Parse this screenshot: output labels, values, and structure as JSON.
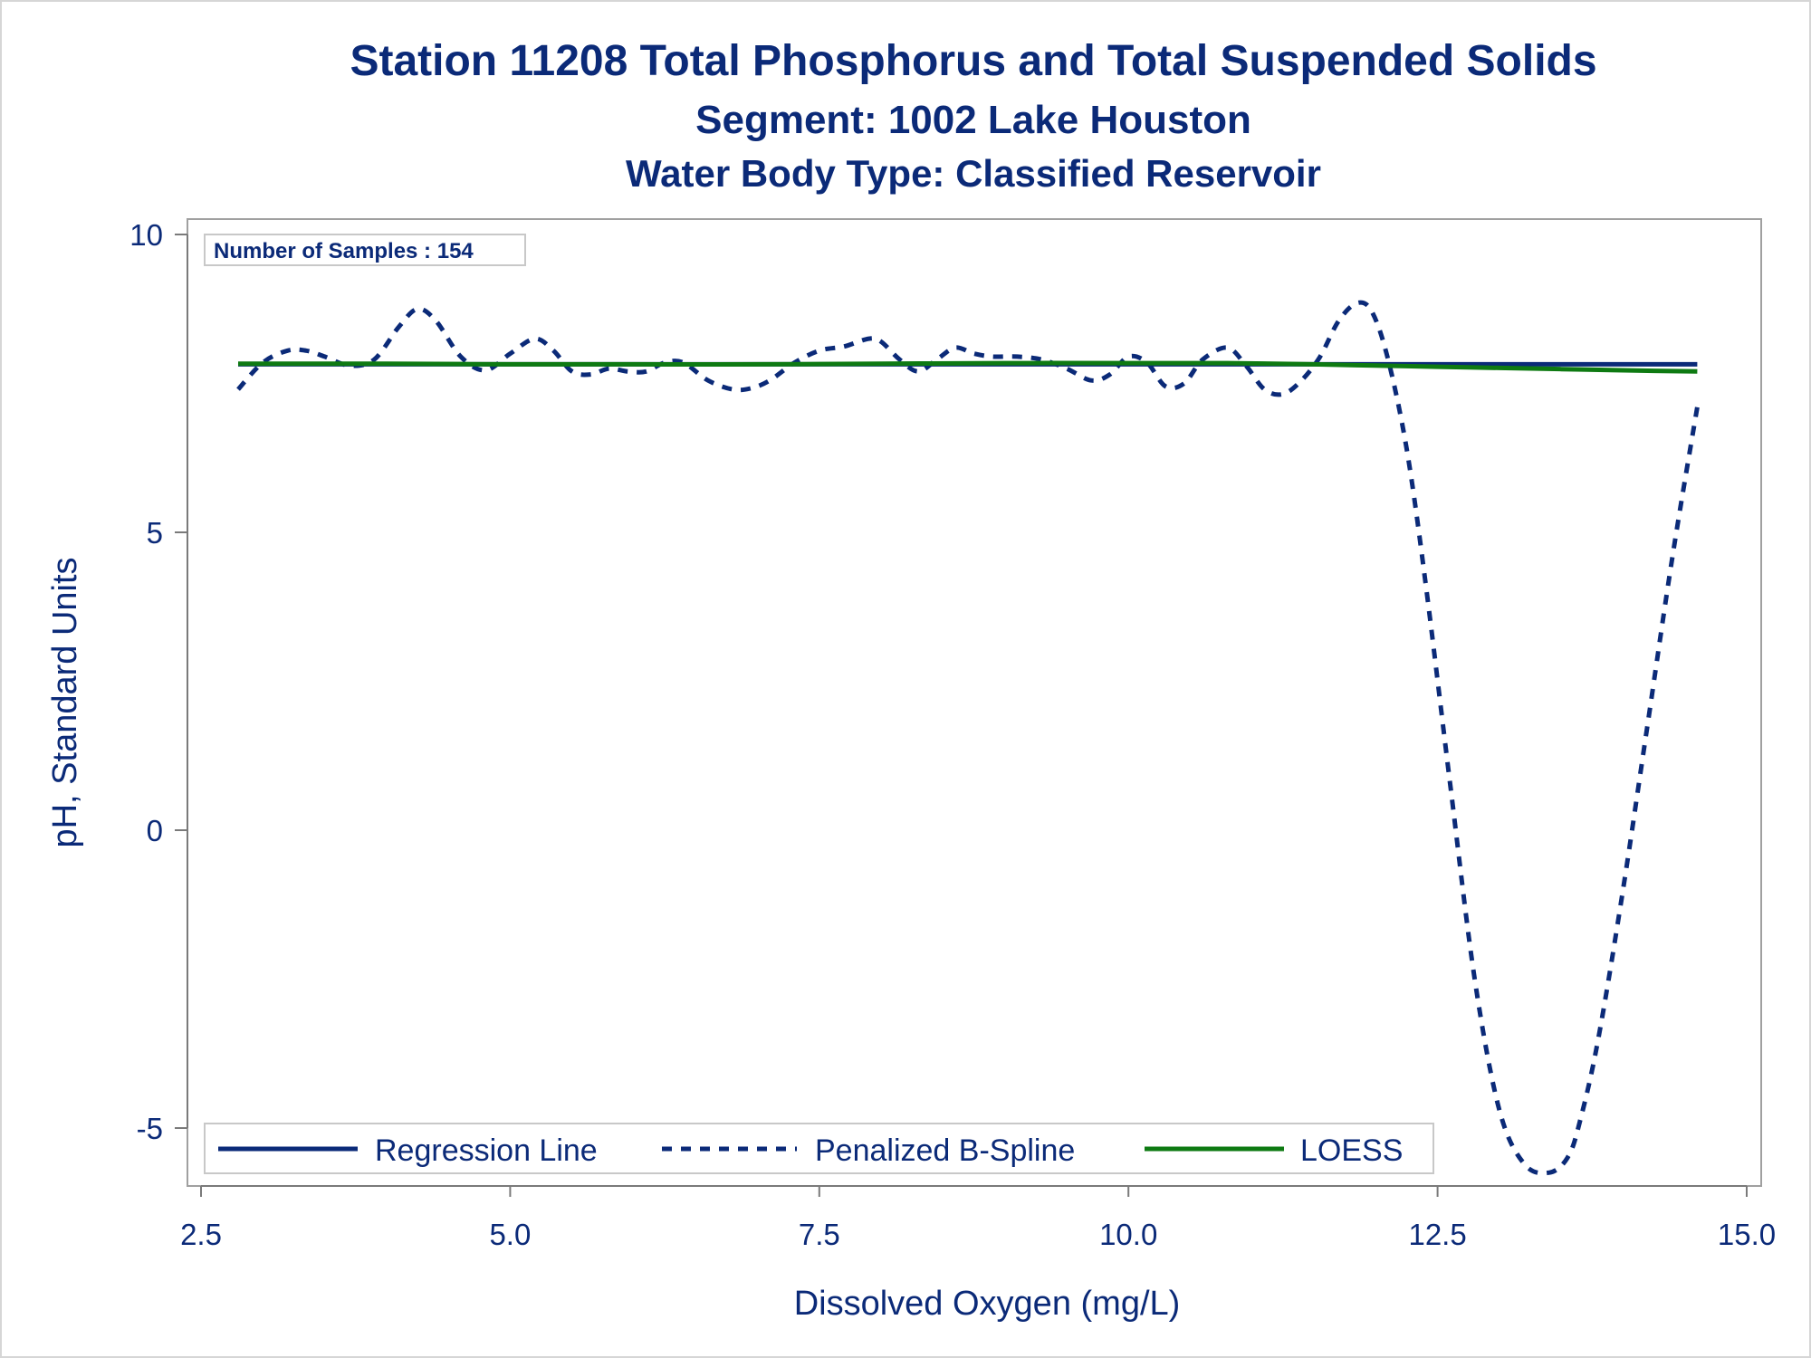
{
  "chart_data": {
    "type": "line",
    "title": "Station 11208  Total Phosphorus and Total Suspended Solids",
    "subtitle": "Segment: 1002  Lake Houston",
    "subtitle2": "Water Body Type: Classified Reservoir",
    "xlabel": "Dissolved Oxygen (mg/L)",
    "ylabel": "pH, Standard Units",
    "xlim": [
      2.5,
      15.0
    ],
    "ylim": [
      -5.75,
      10.3
    ],
    "xticks": [
      2.5,
      5.0,
      7.5,
      10.0,
      12.5,
      15.0
    ],
    "xtick_labels": [
      "2.5",
      "5.0",
      "7.5",
      "10.0",
      "12.5",
      "15.0"
    ],
    "yticks": [
      -5,
      0,
      5,
      10
    ],
    "ytick_labels": [
      "-5",
      "0",
      "5",
      "10"
    ],
    "grid": false,
    "legend_position": "bottom-left inside",
    "inset_label": "Number of Samples : 154",
    "series": [
      {
        "name": "Regression Line",
        "style": "solid",
        "color": "#0b2a78",
        "x": [
          2.8,
          14.6
        ],
        "y": [
          7.82,
          7.82
        ]
      },
      {
        "name": "Penalized B-Spline",
        "style": "dashed",
        "color": "#0b2a78",
        "x": [
          2.8,
          3.0,
          3.2,
          3.35,
          3.5,
          3.7,
          3.9,
          4.1,
          4.25,
          4.4,
          4.6,
          4.8,
          5.0,
          5.2,
          5.35,
          5.5,
          5.65,
          5.8,
          5.95,
          6.1,
          6.25,
          6.4,
          6.6,
          6.8,
          6.95,
          7.1,
          7.3,
          7.5,
          7.7,
          7.9,
          8.0,
          8.15,
          8.3,
          8.45,
          8.6,
          8.75,
          8.9,
          9.1,
          9.3,
          9.5,
          9.7,
          9.85,
          10.0,
          10.15,
          10.3,
          10.45,
          10.6,
          10.8,
          10.95,
          11.1,
          11.25,
          11.4,
          11.55,
          11.7,
          11.85,
          11.97,
          12.1,
          12.25,
          12.4,
          12.6,
          12.8,
          13.0,
          13.2,
          13.4,
          13.55,
          13.65,
          13.8,
          14.0,
          14.2,
          14.4,
          14.6
        ],
        "y": [
          7.4,
          7.85,
          8.05,
          8.05,
          7.95,
          7.8,
          7.9,
          8.45,
          8.75,
          8.55,
          7.95,
          7.72,
          8.0,
          8.25,
          8.05,
          7.7,
          7.65,
          7.75,
          7.7,
          7.7,
          7.85,
          7.85,
          7.55,
          7.4,
          7.42,
          7.55,
          7.85,
          8.05,
          8.12,
          8.25,
          8.2,
          7.9,
          7.7,
          7.9,
          8.1,
          8.0,
          7.95,
          7.95,
          7.9,
          7.75,
          7.55,
          7.65,
          7.95,
          7.85,
          7.45,
          7.5,
          7.9,
          8.1,
          7.8,
          7.4,
          7.32,
          7.55,
          7.95,
          8.55,
          8.85,
          8.7,
          7.9,
          6.4,
          4.2,
          0.8,
          -2.5,
          -4.7,
          -5.6,
          -5.75,
          -5.5,
          -4.9,
          -3.5,
          -1.0,
          1.8,
          4.6,
          7.1
        ]
      },
      {
        "name": "LOESS",
        "style": "solid",
        "color": "#0e7a12",
        "x": [
          2.8,
          4.0,
          5.0,
          6.0,
          7.0,
          8.0,
          9.0,
          10.0,
          10.8,
          11.5,
          12.0,
          12.5,
          13.0,
          13.5,
          14.0,
          14.6
        ],
        "y": [
          7.83,
          7.83,
          7.82,
          7.82,
          7.82,
          7.83,
          7.84,
          7.84,
          7.84,
          7.82,
          7.8,
          7.78,
          7.76,
          7.74,
          7.72,
          7.7
        ]
      }
    ]
  }
}
